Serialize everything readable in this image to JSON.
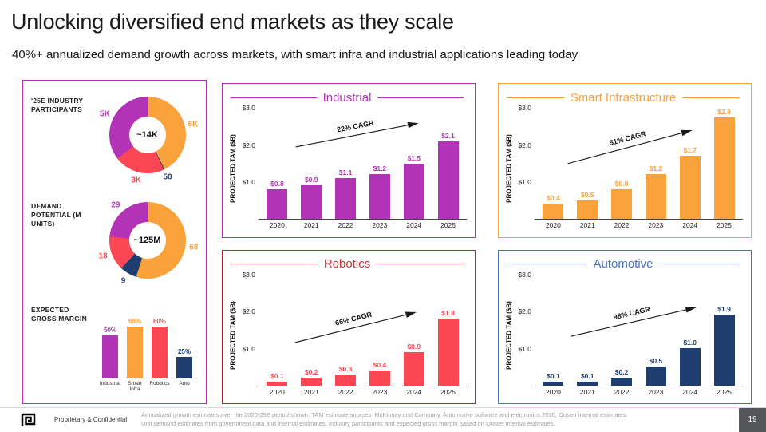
{
  "slide": {
    "title": "Unlocking diversified end markets as they scale",
    "subtitle": "40%+ annualized demand growth across markets, with smart infra and industrial applications leading today"
  },
  "footer": {
    "confidential": "Proprietary & Confidential",
    "footnote_line1": "Annualized growth estimates over the 2020-25E period shown. TAM estimate sources: McKinsey and Company. Automotive software and electronics 2030; Ouster internal estimates.",
    "footnote_line2": "Unit demand estimates from government data and internal estimates. Industry participants and expected gross margin based on Ouster internal estimates.",
    "page_number": "19"
  },
  "colors": {
    "industrial_purple": "#B233B6",
    "smart_infra_orange": "#F9A13B",
    "robotics_red": "#FB4753",
    "robotics_dark_red": "#B3282D",
    "automotive_navy": "#1F3D6E",
    "automotive_blue": "#4472C4",
    "footnote_gray": "#A0A0A0"
  },
  "chart_data": [
    {
      "id": "participants",
      "type": "pie",
      "title": "'25E INDUSTRY PARTICIPANTS",
      "center_label": "~14K",
      "segments": [
        {
          "label": "6K",
          "value": 6000,
          "color": "#F9A13B"
        },
        {
          "label": "50",
          "value": 50,
          "color": "#1F3D6E"
        },
        {
          "label": "3K",
          "value": 3000,
          "color": "#FB4753"
        },
        {
          "label": "5K",
          "value": 5000,
          "color": "#B233B6"
        }
      ]
    },
    {
      "id": "demand",
      "type": "pie",
      "title": "DEMAND POTENTIAL (M UNITS)",
      "center_label": "~125M",
      "segments": [
        {
          "label": "68",
          "value": 68,
          "color": "#F9A13B"
        },
        {
          "label": "9",
          "value": 9,
          "color": "#1F3D6E"
        },
        {
          "label": "18",
          "value": 18,
          "color": "#FB4753"
        },
        {
          "label": "29",
          "value": 29,
          "color": "#B233B6"
        }
      ]
    },
    {
      "id": "gross-margin",
      "type": "bar",
      "title": "EXPECTED GROSS MARGIN",
      "categories": [
        "Industrial",
        "Smart Infra",
        "Robotics",
        "Auto"
      ],
      "values": [
        50,
        60,
        60,
        25
      ],
      "labels": [
        "50%",
        "60%",
        "60%",
        "25%"
      ],
      "colors": [
        "#B233B6",
        "#F9A13B",
        "#FB4753",
        "#1F3D6E"
      ],
      "ylim": [
        0,
        72
      ]
    },
    {
      "id": "industrial",
      "type": "bar",
      "title": "Industrial",
      "ylabel": "PROJECTED TAM ($B)",
      "categories": [
        "2020",
        "2021",
        "2022",
        "2023",
        "2024",
        "2025"
      ],
      "values": [
        0.8,
        0.9,
        1.1,
        1.2,
        1.5,
        2.1
      ],
      "labels": [
        "$0.8",
        "$0.9",
        "$1.1",
        "$1.2",
        "$1.5",
        "$2.1"
      ],
      "cagr": "22% CAGR",
      "ylim": [
        0,
        3.0
      ],
      "yticks": [
        1.0,
        2.0,
        3.0
      ],
      "ytick_labels": [
        "$1.0",
        "$2.0",
        "$3.0"
      ],
      "color": "#B233B6",
      "label_color": "#B233B6",
      "title_color": "#B233B6",
      "border_color": "#B233B6"
    },
    {
      "id": "smart-infrastructure",
      "type": "bar",
      "title": "Smart Infrastructure",
      "ylabel": "PROJECTED TAM ($B)",
      "categories": [
        "2020",
        "2021",
        "2022",
        "2023",
        "2024",
        "2025"
      ],
      "values": [
        0.4,
        0.5,
        0.8,
        1.2,
        1.7,
        2.8
      ],
      "labels": [
        "$0.4",
        "$0.5",
        "$0.8",
        "$1.2",
        "$1.7",
        "$2.8"
      ],
      "cagr": "51% CAGR",
      "ylim": [
        0,
        3.0
      ],
      "yticks": [
        1.0,
        2.0,
        3.0
      ],
      "ytick_labels": [
        "$1.0",
        "$2.0",
        "$3.0"
      ],
      "color": "#F9A13B",
      "label_color": "#F9A13B",
      "title_color": "#F9A13B",
      "border_color": "#F9A13B"
    },
    {
      "id": "robotics",
      "type": "bar",
      "title": "Robotics",
      "ylabel": "PROJECTED TAM ($B)",
      "categories": [
        "2020",
        "2021",
        "2022",
        "2023",
        "2024",
        "2025"
      ],
      "values": [
        0.1,
        0.2,
        0.3,
        0.4,
        0.9,
        1.8
      ],
      "labels": [
        "$0.1",
        "$0.2",
        "$0.3",
        "$0.4",
        "$0.9",
        "$1.8"
      ],
      "cagr": "66% CAGR",
      "ylim": [
        0,
        3.0
      ],
      "yticks": [
        1.0,
        2.0,
        3.0
      ],
      "ytick_labels": [
        "$1.0",
        "$2.0",
        "$3.0"
      ],
      "color": "#FB4753",
      "label_color": "#FB4753",
      "title_color": "#C13535",
      "border_color": "#B3282D"
    },
    {
      "id": "automotive",
      "type": "bar",
      "title": "Automotive",
      "ylabel": "PROJECTED TAM ($B)",
      "categories": [
        "2020",
        "2021",
        "2022",
        "2023",
        "2024",
        "2025"
      ],
      "values": [
        0.1,
        0.1,
        0.2,
        0.5,
        1.0,
        1.9
      ],
      "labels": [
        "$0.1",
        "$0.1",
        "$0.2",
        "$0.5",
        "$1.0",
        "$1.9"
      ],
      "cagr": "98% CAGR",
      "ylim": [
        0,
        3.0
      ],
      "yticks": [
        1.0,
        2.0,
        3.0
      ],
      "ytick_labels": [
        "$1.0",
        "$2.0",
        "$3.0"
      ],
      "color": "#1F3D6E",
      "label_color": "#1F3D6E",
      "title_color": "#4472C4",
      "border_color": "#4472C4"
    }
  ]
}
